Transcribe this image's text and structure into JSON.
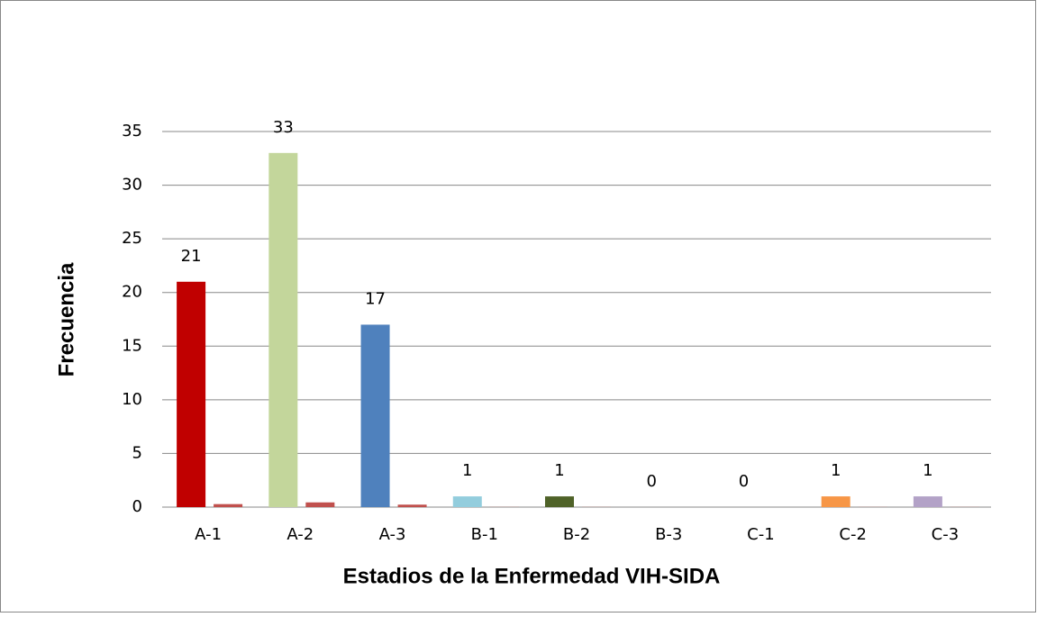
{
  "chart_data": {
    "type": "bar",
    "x_label": "Estadios de la Enfermedad VIH-SIDA",
    "y_label": "Frecuencia",
    "categories": [
      "A-1",
      "A-2",
      "A-3",
      "B-1",
      "B-2",
      "B-3",
      "C-1",
      "C-2",
      "C-3"
    ],
    "series": [
      {
        "colors": [
          "#c00000",
          "#c3d69b",
          "#4f81bd",
          "#93cddd",
          "#4f6228",
          "#8064a2",
          "#4bacc6",
          "#f79646",
          "#b3a2c7"
        ],
        "values": [
          21,
          33,
          17,
          1,
          1,
          0,
          0,
          1,
          1
        ]
      },
      {
        "color": "#c0504d",
        "values": [
          0.28,
          0.44,
          0.23,
          0.01,
          0.01,
          0,
          0,
          0.01,
          0.01
        ]
      }
    ],
    "ylim": [
      0,
      35
    ],
    "yticks": [
      0,
      5,
      10,
      15,
      20,
      25,
      30,
      35
    ],
    "grid": true
  }
}
